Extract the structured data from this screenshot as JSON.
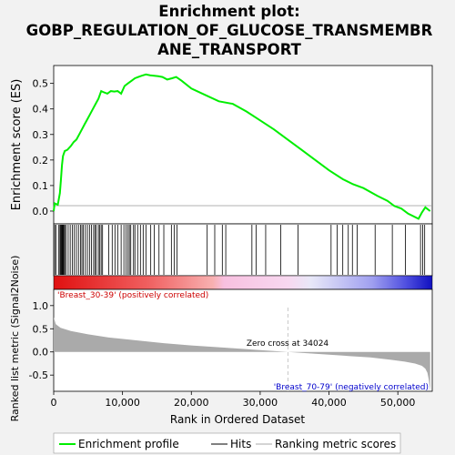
{
  "chart_data": {
    "type": "line",
    "title_lines": [
      "Enrichment plot:",
      "GOBP_REGULATION_OF_GLUCOSE_TRANSMEMBR",
      "ANE_TRANSPORT"
    ],
    "ylabel_top": "Enrichment score (ES)",
    "ylabel_bottom": "Ranked list metric (Signal2Noise)",
    "xlabel": "Rank in Ordered Dataset",
    "x_ticks": [
      0,
      10000,
      20000,
      30000,
      40000,
      50000
    ],
    "x_tick_labels": [
      "0",
      "10,000",
      "20,000",
      "30,000",
      "40,000",
      "50,000"
    ],
    "xlim": [
      0,
      55000
    ],
    "es_ylim": [
      -0.05,
      0.57
    ],
    "es_yticks": [
      0.0,
      0.1,
      0.2,
      0.3,
      0.4,
      0.5
    ],
    "es_ytick_labels": [
      "0.0",
      "0.1",
      "0.2",
      "0.3",
      "0.4",
      "0.5"
    ],
    "metric_ylim": [
      -0.85,
      1.35
    ],
    "metric_yticks": [
      1.0,
      0.5,
      0.0,
      -0.5
    ],
    "metric_ytick_labels": [
      "1.0",
      "0.5",
      "0.0",
      "-0.5"
    ],
    "enrichment_profile": {
      "x": [
        0,
        150,
        600,
        900,
        1050,
        1200,
        1350,
        1600,
        2000,
        2500,
        2900,
        3300,
        3700,
        4100,
        4500,
        4900,
        5300,
        5700,
        6100,
        6500,
        6900,
        7300,
        7800,
        8300,
        8800,
        9300,
        9800,
        10300,
        10800,
        11300,
        11800,
        12300,
        12800,
        13400,
        14000,
        14600,
        15200,
        15800,
        16500,
        17200,
        17800,
        18600,
        20000,
        22000,
        24000,
        26000,
        28000,
        30000,
        32000,
        34000,
        36000,
        38000,
        40000,
        42000,
        43500,
        45000,
        47000,
        48500,
        49500,
        50500,
        51500,
        53000,
        53500,
        54000,
        54700
      ],
      "y": [
        0.0,
        0.03,
        0.025,
        0.07,
        0.12,
        0.18,
        0.215,
        0.235,
        0.24,
        0.255,
        0.27,
        0.28,
        0.3,
        0.32,
        0.34,
        0.36,
        0.38,
        0.4,
        0.42,
        0.44,
        0.47,
        0.465,
        0.46,
        0.47,
        0.468,
        0.47,
        0.46,
        0.49,
        0.5,
        0.51,
        0.52,
        0.525,
        0.53,
        0.535,
        0.532,
        0.53,
        0.528,
        0.525,
        0.515,
        0.52,
        0.525,
        0.51,
        0.48,
        0.455,
        0.43,
        0.42,
        0.39,
        0.355,
        0.32,
        0.28,
        0.24,
        0.2,
        0.16,
        0.125,
        0.105,
        0.09,
        0.06,
        0.04,
        0.02,
        0.01,
        -0.01,
        -0.03,
        -0.005,
        0.015,
        0.0
      ]
    },
    "hits": [
      150,
      350,
      700,
      900,
      1000,
      1100,
      1200,
      1300,
      1400,
      1500,
      1600,
      1800,
      2100,
      2400,
      2700,
      3000,
      3300,
      3600,
      3900,
      4100,
      4300,
      4600,
      4900,
      5200,
      5500,
      5800,
      6000,
      6200,
      6500,
      6700,
      6900,
      7100,
      8000,
      8500,
      8900,
      9300,
      9800,
      10200,
      10500,
      10800,
      11000,
      11200,
      11600,
      11800,
      12200,
      12600,
      13000,
      13400,
      14100,
      14600,
      15300,
      16000,
      17100,
      17500,
      17900,
      22300,
      23400,
      24500,
      25000,
      28800,
      29400,
      30800,
      33000,
      35500,
      40300,
      41200,
      42000,
      42800,
      43400,
      44100,
      46700,
      49200,
      51100,
      53300,
      53600,
      53900
    ],
    "metric_profile": {
      "x": [
        0,
        300,
        1000,
        2500,
        5000,
        8000,
        12000,
        16000,
        20000,
        25000,
        30000,
        34024,
        38000,
        42000,
        46000,
        49000,
        51000,
        52500,
        53500,
        54000,
        54300,
        54500,
        54700
      ],
      "y": [
        0.75,
        0.6,
        0.52,
        0.45,
        0.38,
        0.31,
        0.25,
        0.19,
        0.14,
        0.09,
        0.04,
        0.0,
        -0.04,
        -0.08,
        -0.12,
        -0.17,
        -0.21,
        -0.25,
        -0.3,
        -0.36,
        -0.45,
        -0.6,
        -0.85
      ]
    },
    "pos_label": "'Breast_30-39' (positively correlated)",
    "neg_label": "'Breast_70-79' (negatively correlated)",
    "zero_cross_label": "Zero cross at 34024",
    "zero_cross_x": 34024,
    "legend": [
      "Enrichment profile",
      "Hits",
      "Ranking metric scores"
    ],
    "colors": {
      "profile": "#00ee00",
      "hits": "#000000",
      "metric": "#aaaaaa",
      "pos_text": "#cc0000",
      "neg_text": "#0000cc"
    }
  }
}
